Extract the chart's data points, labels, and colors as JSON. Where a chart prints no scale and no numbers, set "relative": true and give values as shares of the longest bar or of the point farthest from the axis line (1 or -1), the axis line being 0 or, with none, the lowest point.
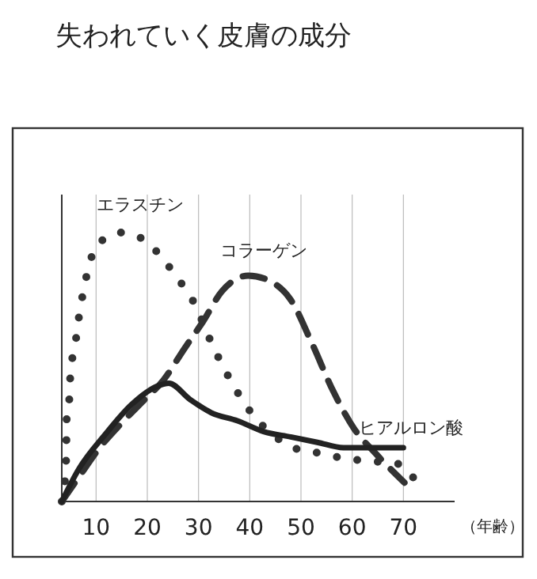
{
  "chart_data": {
    "type": "line",
    "title": "失われていく皮膚の成分",
    "xlabel": "（年齢）",
    "relative": true,
    "xlim": [
      3.3,
      80
    ],
    "xticks": [
      10,
      20,
      30,
      40,
      50,
      60,
      70
    ],
    "grid": "x",
    "marker": "none",
    "series": [
      {
        "name": "エラスチン",
        "color": "#333333",
        "line_style": "dotted",
        "x": [
          3.3,
          4.0,
          4.2,
          4.2,
          4.8,
          5.0,
          5.9,
          6.6,
          7.4,
          8.4,
          10.1,
          14.7,
          19.6,
          23.1,
          26.3,
          28.8,
          33.0,
          35.4,
          37.8,
          40.7,
          44.4,
          48.5,
          53.5,
          58.6,
          63.5,
          68.9,
          73.9
        ],
        "values": [
          0,
          0.1,
          0.2,
          0.29,
          0.39,
          0.48,
          0.58,
          0.68,
          0.77,
          0.86,
          0.95,
          1.0,
          0.97,
          0.9,
          0.82,
          0.75,
          0.57,
          0.48,
          0.4,
          0.32,
          0.25,
          0.2,
          0.18,
          0.16,
          0.15,
          0.14,
          0.03
        ]
      },
      {
        "name": "コラーゲン",
        "color": "#333333",
        "line_style": "dashed",
        "x": [
          3.3,
          6.6,
          10.7,
          14.9,
          19.0,
          23.1,
          27.3,
          30.9,
          34.5,
          39.7,
          43.9,
          48.0,
          52.1,
          56.3,
          60.4,
          64.5,
          70.2
        ],
        "values": [
          0,
          0.09,
          0.2,
          0.29,
          0.37,
          0.45,
          0.57,
          0.67,
          0.78,
          0.84,
          0.82,
          0.75,
          0.59,
          0.41,
          0.27,
          0.18,
          0.07
        ]
      },
      {
        "name": "ヒアルロン酸",
        "color": "#222222",
        "line_style": "solid",
        "x": [
          3.3,
          6.6,
          11.8,
          16.9,
          22.1,
          24.2,
          28.3,
          32.5,
          37.6,
          42.7,
          48.0,
          53.2,
          58.3,
          63.5,
          70.0
        ],
        "values": [
          0,
          0.12,
          0.25,
          0.36,
          0.43,
          0.44,
          0.38,
          0.33,
          0.3,
          0.26,
          0.24,
          0.22,
          0.2,
          0.2,
          0.2
        ]
      }
    ]
  }
}
